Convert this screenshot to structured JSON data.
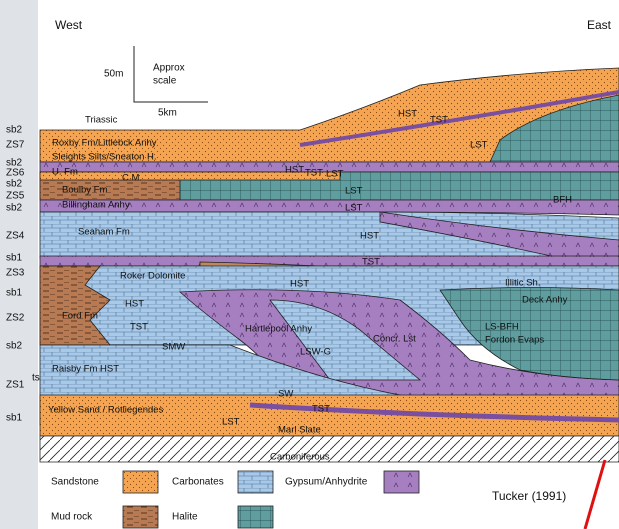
{
  "header": {
    "west": "West",
    "east": "East"
  },
  "scale": {
    "vertical": "50m",
    "note_line1": "Approx",
    "note_line2": "scale",
    "horizontal": "5km"
  },
  "zone_labels": [
    "sb2",
    "ZS7",
    "sb2",
    "ZS6",
    "sb2",
    "ZS5",
    "sb2",
    "ZS4",
    "sb1",
    "ZS3",
    "sb1",
    "ZS2",
    "sb2",
    "ts",
    "ZS1",
    "sb1"
  ],
  "unit_labels": [
    "Triassic",
    "HST",
    "TST",
    "LST",
    "Roxby Fm/Littlebck Anhy",
    "Sleights Silts/Sneaton H.",
    "U. Fm",
    "C.M.",
    "HST",
    "TST",
    "LST",
    "Boulby Fm",
    "LST",
    "BFH",
    "Billingham Anhy",
    "LST",
    "Seaham Fm",
    "HST",
    "TST",
    "Roker Dolomite",
    "HST",
    "Illitic Sh.",
    "Deck Anhy",
    "HST",
    "TST",
    "Ford Fm",
    "SMW",
    "Hartlepool Anhy",
    "LSW-G",
    "Concr. Lst",
    "LS-BFH",
    "Fordon Evaps",
    "Raisby Fm HST",
    "SW",
    "TST",
    "Yellow Sand / Rotliegendes",
    "LST",
    "Marl Slate",
    "Carboniferous"
  ],
  "legend": {
    "items": [
      "Sandstone",
      "Carbonates",
      "Gypsum/Anhydrite",
      "Mud rock",
      "Halite"
    ]
  },
  "credit": "Tucker (1991)"
}
